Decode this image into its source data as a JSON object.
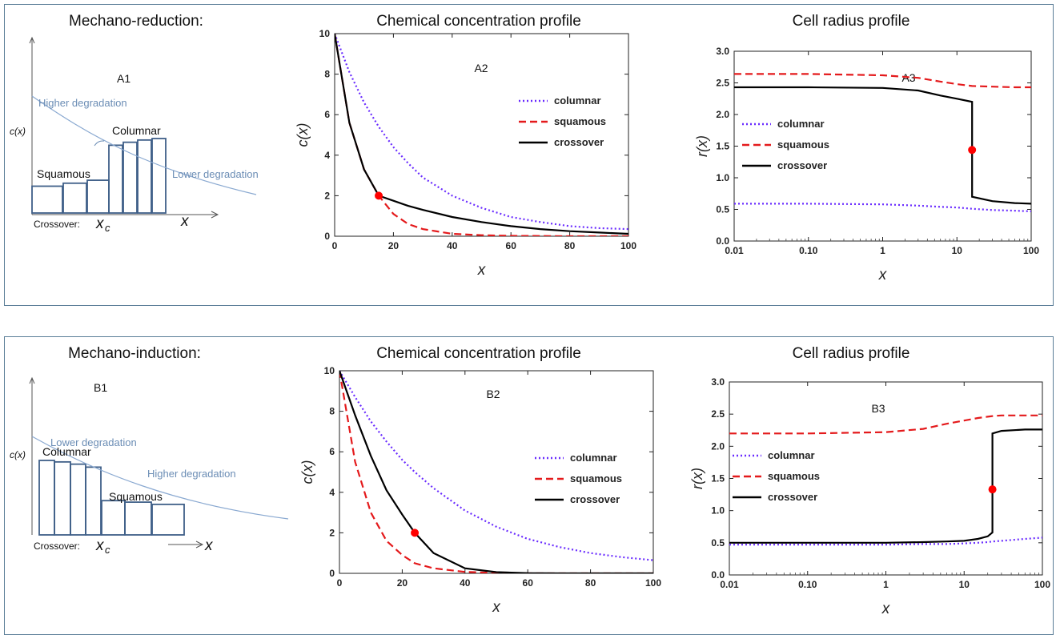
{
  "rows": [
    {
      "id": "a",
      "section_title": "Mechano-reduction:",
      "concentration_title": "Chemical concentration profile",
      "radius_title": "Cell radius profile",
      "schematic": {
        "label": "A1",
        "y_label": "c(x)",
        "x_label": "x",
        "upper_annotation": "Higher degradation",
        "lower_annotation": "Lower degradation",
        "left_group": "Squamous",
        "right_group": "Columnar",
        "crossover_label": "Crossover:",
        "crossover_symbol": "x",
        "crossover_subscript": "c",
        "bar_heights": [
          0.36,
          0.4,
          0.44,
          0.91,
          0.95,
          0.98,
          1.0
        ]
      },
      "concentration_chart": {
        "type": "line",
        "panel_label": "A2",
        "xlabel": "x",
        "ylabel": "c(x)",
        "xlim": [
          0,
          100
        ],
        "ylim": [
          0,
          10
        ],
        "x_ticks": [
          0,
          20,
          40,
          60,
          80,
          100
        ],
        "y_ticks": [
          0,
          2,
          4,
          6,
          8,
          10
        ],
        "legend_position": "right",
        "x": [
          0,
          5,
          10,
          15,
          20,
          25,
          30,
          40,
          50,
          60,
          70,
          80,
          90,
          100
        ],
        "series": [
          {
            "name": "columnar",
            "color": "#6a2cff",
            "dash": "dotted",
            "values": [
              10,
              8.1,
              6.6,
              5.4,
              4.4,
              3.6,
              2.9,
              2.0,
              1.4,
              0.95,
              0.7,
              0.5,
              0.4,
              0.35
            ]
          },
          {
            "name": "squamous",
            "color": "#e41a1c",
            "dash": "dashed",
            "values": [
              10,
              5.6,
              3.3,
              2.0,
              1.1,
              0.6,
              0.35,
              0.12,
              0.05,
              0.02,
              0.01,
              0.0,
              0.0,
              0.0
            ]
          },
          {
            "name": "crossover",
            "color": "#000000",
            "dash": "solid",
            "values": [
              10,
              5.6,
              3.3,
              2.0,
              1.75,
              1.5,
              1.3,
              0.95,
              0.7,
              0.5,
              0.35,
              0.25,
              0.18,
              0.12
            ]
          }
        ],
        "marker": {
          "x": 15,
          "y": 2.0,
          "color": "#ff0000"
        }
      },
      "radius_chart": {
        "type": "line",
        "panel_label": "A3",
        "xlabel": "x",
        "ylabel": "r(x)",
        "xscale": "log",
        "xlim": [
          0.01,
          100
        ],
        "ylim": [
          0,
          3.0
        ],
        "x_ticks": [
          0.01,
          0.1,
          1,
          10,
          100
        ],
        "x_tick_labels": [
          "0.01",
          "0.10",
          "1",
          "10",
          "100"
        ],
        "y_ticks": [
          0,
          0.5,
          1.0,
          1.5,
          2.0,
          2.5,
          3.0
        ],
        "y_tick_labels": [
          "0.0",
          "0.5",
          "1.0",
          "1.5",
          "2.0",
          "2.5",
          "3.0"
        ],
        "legend_position": "left",
        "x": [
          0.01,
          0.1,
          1,
          3,
          6,
          10,
          16,
          16,
          30,
          60,
          100
        ],
        "series": [
          {
            "name": "columnar",
            "color": "#6a2cff",
            "dash": "dotted",
            "values": [
              0.59,
              0.59,
              0.58,
              0.56,
              0.54,
              0.53,
              0.51,
              0.51,
              0.49,
              0.48,
              0.47
            ]
          },
          {
            "name": "squamous",
            "color": "#e41a1c",
            "dash": "dashed",
            "values": [
              2.64,
              2.64,
              2.62,
              2.58,
              2.52,
              2.48,
              2.45,
              2.45,
              2.44,
              2.43,
              2.43
            ]
          },
          {
            "name": "crossover",
            "color": "#000000",
            "dash": "solid",
            "values": [
              2.43,
              2.43,
              2.42,
              2.38,
              2.3,
              2.25,
              2.2,
              0.7,
              0.63,
              0.6,
              0.59
            ]
          }
        ],
        "marker": {
          "x": 16,
          "y": 1.44,
          "color": "#ff0000"
        }
      }
    },
    {
      "id": "b",
      "section_title": "Mechano-induction:",
      "concentration_title": "Chemical concentration profile",
      "radius_title": "Cell radius profile",
      "schematic": {
        "label": "B1",
        "y_label": "c(x)",
        "x_label": "x",
        "upper_annotation": "Lower degradation",
        "lower_annotation": "Higher degradation",
        "left_group": "Columnar",
        "right_group": "Squamous",
        "crossover_label": "Crossover:",
        "crossover_symbol": "x",
        "crossover_subscript": "c",
        "bar_heights": [
          1.0,
          0.98,
          0.95,
          0.91,
          0.46,
          0.44,
          0.41
        ]
      },
      "concentration_chart": {
        "type": "line",
        "panel_label": "B2",
        "xlabel": "x",
        "ylabel": "c(x)",
        "xlim": [
          0,
          100
        ],
        "ylim": [
          0,
          10
        ],
        "x_ticks": [
          0,
          20,
          40,
          60,
          80,
          100
        ],
        "y_ticks": [
          0,
          2,
          4,
          6,
          8,
          10
        ],
        "legend_position": "right",
        "x": [
          0,
          5,
          10,
          15,
          20,
          24,
          30,
          40,
          50,
          60,
          70,
          80,
          90,
          100
        ],
        "series": [
          {
            "name": "columnar",
            "color": "#6a2cff",
            "dash": "dotted",
            "values": [
              10,
              8.7,
              7.5,
              6.5,
              5.6,
              5.0,
              4.2,
              3.1,
              2.3,
              1.7,
              1.3,
              1.0,
              0.8,
              0.65
            ]
          },
          {
            "name": "squamous",
            "color": "#e41a1c",
            "dash": "dashed",
            "values": [
              10,
              5.5,
              3.0,
              1.6,
              0.9,
              0.5,
              0.25,
              0.07,
              0.02,
              0.0,
              0.0,
              0.0,
              0.0,
              0.0
            ]
          },
          {
            "name": "crossover",
            "color": "#000000",
            "dash": "solid",
            "values": [
              10,
              7.8,
              5.8,
              4.1,
              2.9,
              2.0,
              1.0,
              0.25,
              0.06,
              0.01,
              0.0,
              0.0,
              0.0,
              0.0
            ]
          }
        ],
        "marker": {
          "x": 24,
          "y": 2.0,
          "color": "#ff0000"
        }
      },
      "radius_chart": {
        "type": "line",
        "panel_label": "B3",
        "xlabel": "x",
        "ylabel": "r(x)",
        "xscale": "log",
        "xlim": [
          0.01,
          100
        ],
        "ylim": [
          0,
          3.0
        ],
        "x_ticks": [
          0.01,
          0.1,
          1,
          10,
          100
        ],
        "x_tick_labels": [
          "0.01",
          "0.10",
          "1",
          "10",
          "100"
        ],
        "y_ticks": [
          0,
          0.5,
          1.0,
          1.5,
          2.0,
          2.5,
          3.0
        ],
        "y_tick_labels": [
          "0.0",
          "0.5",
          "1.0",
          "1.5",
          "2.0",
          "2.5",
          "3.0"
        ],
        "legend_position": "left",
        "x": [
          0.01,
          0.1,
          1,
          3,
          6,
          10,
          15,
          20,
          23,
          23,
          30,
          60,
          100
        ],
        "series": [
          {
            "name": "columnar",
            "color": "#6a2cff",
            "dash": "dotted",
            "values": [
              0.47,
              0.47,
              0.47,
              0.48,
              0.48,
              0.49,
              0.5,
              0.51,
              0.52,
              0.52,
              0.53,
              0.56,
              0.58
            ]
          },
          {
            "name": "squamous",
            "color": "#e41a1c",
            "dash": "dashed",
            "values": [
              2.2,
              2.2,
              2.22,
              2.27,
              2.35,
              2.4,
              2.44,
              2.46,
              2.47,
              2.47,
              2.48,
              2.48,
              2.48
            ]
          },
          {
            "name": "crossover",
            "color": "#000000",
            "dash": "solid",
            "values": [
              0.5,
              0.5,
              0.5,
              0.51,
              0.52,
              0.53,
              0.56,
              0.6,
              0.66,
              2.2,
              2.24,
              2.26,
              2.26
            ]
          }
        ],
        "marker": {
          "x": 23,
          "y": 1.33,
          "color": "#ff0000"
        }
      }
    }
  ]
}
